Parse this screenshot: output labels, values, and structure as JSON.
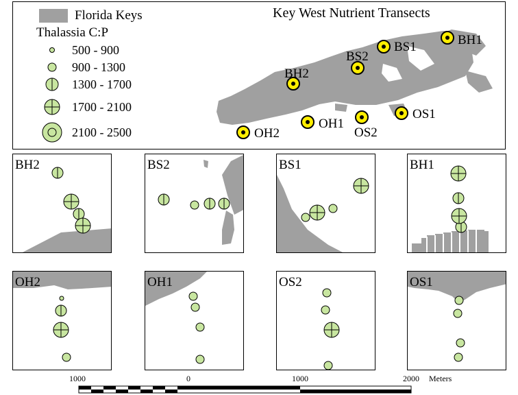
{
  "overview": {
    "title": "Key West Nutrient Transects",
    "legend_land": "Florida Keys",
    "legend_title": "Thalassia C:P",
    "legend_classes": [
      "500 - 900",
      "900 - 1300",
      "1300 - 1700",
      "1700 - 2100",
      "2100 - 2500"
    ],
    "stations": [
      "BH1",
      "BS1",
      "BS2",
      "BH2",
      "OS1",
      "OS2",
      "OH1",
      "OH2"
    ]
  },
  "panels": [
    {
      "label": "BH2"
    },
    {
      "label": "BS2"
    },
    {
      "label": "BS1"
    },
    {
      "label": "BH1"
    },
    {
      "label": "OH2"
    },
    {
      "label": "OH1"
    },
    {
      "label": "OS2"
    },
    {
      "label": "OS1"
    }
  ],
  "scale_bar": {
    "labels": [
      "1000",
      "0",
      "1000",
      "2000"
    ],
    "unit": "Meters"
  },
  "colors": {
    "land": "#a0a0a0",
    "symbol_fill": "#c8e6a0",
    "station_fill": "#ffee00"
  }
}
